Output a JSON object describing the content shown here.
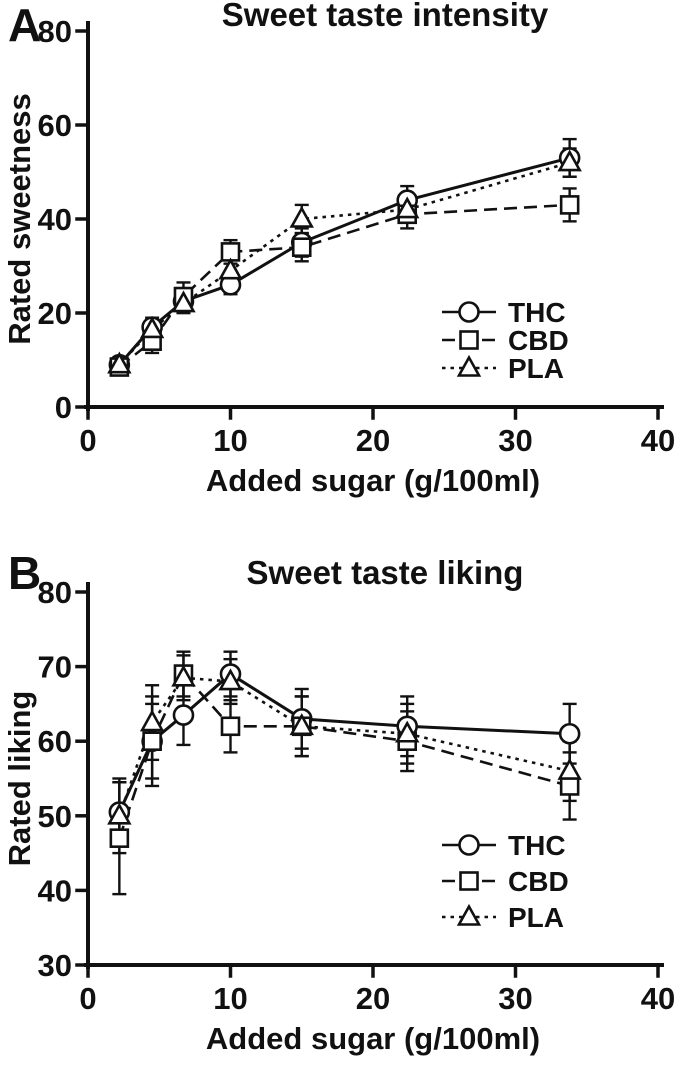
{
  "figure": {
    "panels": [
      {
        "label": "A"
      },
      {
        "label": "B"
      }
    ]
  },
  "chart_data": [
    {
      "type": "line",
      "title": "Sweet taste intensity",
      "xlabel": "Added sugar (g/100ml)",
      "ylabel": "Rated sweetness",
      "xlim": [
        0,
        40
      ],
      "ylim": [
        0,
        80
      ],
      "xticks": [
        0,
        10,
        20,
        30,
        40
      ],
      "yticks": [
        0,
        20,
        40,
        60,
        80
      ],
      "grid": false,
      "legend": {
        "position": "inside lower right",
        "entries": [
          "THC",
          "CBD",
          "PLA"
        ]
      },
      "x": [
        2.2,
        4.5,
        6.7,
        10,
        15,
        22.4,
        33.8
      ],
      "series": [
        {
          "name": "THC",
          "marker": "circle",
          "line_style": "solid",
          "values": [
            9,
            17,
            22.5,
            26,
            35,
            44,
            53
          ],
          "errors": [
            1.5,
            2,
            2.5,
            2,
            3,
            3,
            4
          ]
        },
        {
          "name": "CBD",
          "marker": "square",
          "line_style": "dashed",
          "values": [
            8.5,
            14,
            23.5,
            33,
            34,
            41,
            43
          ],
          "errors": [
            1.5,
            2.5,
            3,
            2.5,
            3,
            3,
            3.5
          ]
        },
        {
          "name": "PLA",
          "marker": "triangle",
          "line_style": "dotted",
          "values": [
            9,
            16.5,
            22,
            29,
            40,
            42,
            52
          ],
          "errors": [
            1.5,
            2,
            2,
            2.5,
            3,
            2.5,
            3
          ]
        }
      ]
    },
    {
      "type": "line",
      "title": "Sweet taste liking",
      "xlabel": "Added sugar (g/100ml)",
      "ylabel": "Rated liking",
      "xlim": [
        0,
        40
      ],
      "ylim": [
        30,
        80
      ],
      "xticks": [
        0,
        10,
        20,
        30,
        40
      ],
      "yticks": [
        30,
        40,
        50,
        60,
        70,
        80
      ],
      "grid": false,
      "legend": {
        "position": "inside lower right",
        "entries": [
          "THC",
          "CBD",
          "PLA"
        ]
      },
      "x": [
        2.2,
        4.5,
        6.7,
        10,
        15,
        22.4,
        33.8
      ],
      "series": [
        {
          "name": "THC",
          "marker": "circle",
          "line_style": "solid",
          "values": [
            50.5,
            60,
            63.5,
            69,
            63,
            62,
            61
          ],
          "errors": [
            4,
            5,
            4,
            3,
            4,
            4,
            4
          ]
        },
        {
          "name": "CBD",
          "marker": "square",
          "line_style": "dashed",
          "values": [
            47,
            60,
            69,
            62,
            62,
            60,
            54
          ],
          "errors": [
            7.5,
            6,
            3,
            3.5,
            4,
            4,
            4.5
          ]
        },
        {
          "name": "PLA",
          "marker": "triangle",
          "line_style": "dotted",
          "values": [
            50,
            62.5,
            68.5,
            68,
            62,
            61,
            56
          ],
          "errors": [
            5,
            5,
            3,
            3,
            4,
            4,
            4
          ]
        }
      ]
    }
  ]
}
